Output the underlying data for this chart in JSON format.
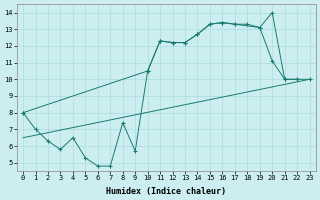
{
  "xlabel": "Humidex (Indice chaleur)",
  "bg_color": "#cceef0",
  "grid_color": "#aaddde",
  "line_color": "#1a7a6e",
  "xlim": [
    -0.5,
    23.5
  ],
  "ylim": [
    4.5,
    14.5
  ],
  "yticks": [
    5,
    6,
    7,
    8,
    9,
    10,
    11,
    12,
    13,
    14
  ],
  "xticks": [
    0,
    1,
    2,
    3,
    4,
    5,
    6,
    7,
    8,
    9,
    10,
    11,
    12,
    13,
    14,
    15,
    16,
    17,
    18,
    19,
    20,
    21,
    22,
    23
  ],
  "line1_x": [
    0,
    1,
    2,
    3,
    4,
    5,
    6,
    7,
    8,
    9,
    10,
    11,
    12,
    13,
    14,
    15,
    16,
    17,
    19,
    20,
    21,
    22
  ],
  "line1_y": [
    8.0,
    7.0,
    6.3,
    5.8,
    6.5,
    5.3,
    4.8,
    4.8,
    7.4,
    5.7,
    10.5,
    12.3,
    12.2,
    12.2,
    12.7,
    13.3,
    13.4,
    13.3,
    13.1,
    11.1,
    10.0,
    10.0
  ],
  "line2_x": [
    0,
    10,
    11,
    12,
    13,
    14,
    15,
    16,
    17,
    18,
    19,
    20,
    21,
    22,
    23
  ],
  "line2_y": [
    8.0,
    10.5,
    12.3,
    12.2,
    12.2,
    12.7,
    13.3,
    13.4,
    13.3,
    13.3,
    13.1,
    14.0,
    10.0,
    10.0,
    10.0
  ],
  "line3_x": [
    0,
    23
  ],
  "line3_y": [
    6.5,
    10.0
  ]
}
